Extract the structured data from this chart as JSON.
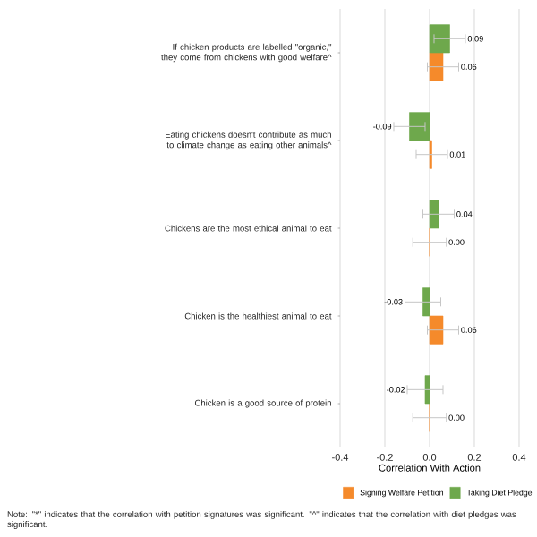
{
  "chart_data": {
    "type": "bar",
    "orientation": "horizontal",
    "xlabel": "Correlation With Action",
    "categories": [
      "If chicken products are labelled \"organic,\" they come from chickens with good welfare^",
      "Eating chickens doesn't contribute as much to climate change as eating other animals^",
      "Chickens are the most ethical animal to eat",
      "Chicken is the healthiest animal to eat",
      "Chicken is a good source of protein"
    ],
    "series": [
      {
        "name": "Signing Welfare Petition",
        "color": "#f58a2b",
        "values": [
          0.06,
          0.01,
          0.0,
          0.06,
          0.0
        ],
        "errors": [
          0.07,
          0.07,
          0.075,
          0.07,
          0.075
        ],
        "value_labels": [
          "0.06",
          "0.01",
          "0.00",
          "0.06",
          "0.00"
        ]
      },
      {
        "name": "Taking Diet Pledge",
        "color": "#6ea84c",
        "values": [
          0.09,
          -0.09,
          0.04,
          -0.03,
          -0.02
        ],
        "errors": [
          0.07,
          0.07,
          0.07,
          0.08,
          0.08
        ],
        "value_labels": [
          "0.09",
          "-0.09",
          "0.04",
          "-0.03",
          "-0.02"
        ]
      }
    ],
    "xlim": [
      -0.4,
      0.4
    ],
    "xticks": [
      -0.4,
      -0.2,
      {
        "value": 0,
        "label": "0.0"
      },
      0.2,
      0.4
    ],
    "grid": "x",
    "legend": "bottom right",
    "annotations": [
      "Note: \"*\" indicates that the correlation with petition signatures was significant. \"^\" indicates that the correlation with diet pledges was significant."
    ]
  }
}
